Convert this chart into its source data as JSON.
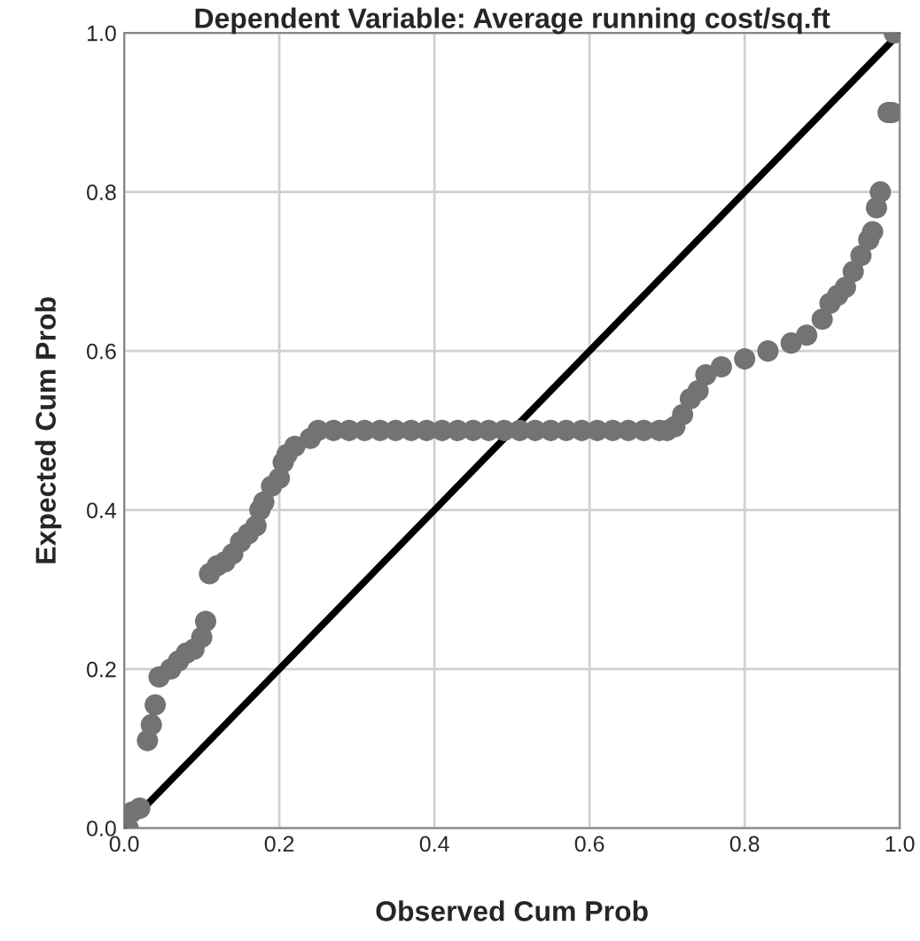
{
  "chart_data": {
    "type": "scatter",
    "title": "Dependent Variable: Average running cost/sq.ft",
    "xlabel": "Observed Cum Prob",
    "ylabel": "Expected Cum Prob",
    "xlim": [
      0,
      1
    ],
    "ylim": [
      0,
      1
    ],
    "xticks": [
      {
        "value": 0,
        "label": "0.0"
      },
      {
        "value": 0.2,
        "label": "0.2"
      },
      {
        "value": 0.4,
        "label": "0.4"
      },
      {
        "value": 0.6,
        "label": "0.6"
      },
      {
        "value": 0.8,
        "label": "0.8"
      },
      {
        "value": 1,
        "label": "1.0"
      }
    ],
    "yticks": [
      {
        "value": 0,
        "label": "0.0"
      },
      {
        "value": 0.2,
        "label": "0.2"
      },
      {
        "value": 0.4,
        "label": "0.4"
      },
      {
        "value": 0.6,
        "label": "0.6"
      },
      {
        "value": 0.8,
        "label": "0.8"
      },
      {
        "value": 1,
        "label": "1.0"
      }
    ],
    "grid": true,
    "marker": "circle",
    "legend": false,
    "series": [
      {
        "color": "#737373",
        "x": [
          0.005,
          0.01,
          0.02,
          0.03,
          0.035,
          0.04,
          0.045,
          0.06,
          0.07,
          0.08,
          0.09,
          0.1,
          0.105,
          0.11,
          0.12,
          0.13,
          0.14,
          0.15,
          0.16,
          0.17,
          0.175,
          0.18,
          0.19,
          0.2,
          0.205,
          0.21,
          0.22,
          0.24,
          0.25,
          0.27,
          0.29,
          0.31,
          0.33,
          0.35,
          0.37,
          0.39,
          0.41,
          0.43,
          0.45,
          0.47,
          0.49,
          0.51,
          0.53,
          0.55,
          0.57,
          0.59,
          0.61,
          0.63,
          0.65,
          0.67,
          0.69,
          0.7,
          0.71,
          0.72,
          0.73,
          0.74,
          0.75,
          0.77,
          0.8,
          0.83,
          0.86,
          0.88,
          0.9,
          0.91,
          0.92,
          0.93,
          0.94,
          0.95,
          0.96,
          0.965,
          0.97,
          0.975,
          0.985,
          0.99,
          0.993
        ],
        "values": [
          0.0,
          0.02,
          0.025,
          0.11,
          0.13,
          0.155,
          0.19,
          0.2,
          0.21,
          0.22,
          0.225,
          0.24,
          0.26,
          0.32,
          0.33,
          0.335,
          0.345,
          0.36,
          0.37,
          0.38,
          0.4,
          0.41,
          0.43,
          0.44,
          0.46,
          0.47,
          0.48,
          0.49,
          0.5,
          0.5,
          0.5,
          0.5,
          0.5,
          0.5,
          0.5,
          0.5,
          0.5,
          0.5,
          0.5,
          0.5,
          0.5,
          0.5,
          0.5,
          0.5,
          0.5,
          0.5,
          0.5,
          0.5,
          0.5,
          0.5,
          0.5,
          0.5,
          0.505,
          0.52,
          0.54,
          0.55,
          0.57,
          0.58,
          0.59,
          0.6,
          0.61,
          0.62,
          0.64,
          0.66,
          0.67,
          0.68,
          0.7,
          0.72,
          0.74,
          0.75,
          0.78,
          0.8,
          0.9,
          0.9,
          1.0
        ]
      },
      {
        "type": "line",
        "color": "#000000",
        "x": [
          0,
          1
        ],
        "values": [
          0,
          1
        ],
        "marker": "none",
        "line_style": "solid"
      }
    ]
  }
}
